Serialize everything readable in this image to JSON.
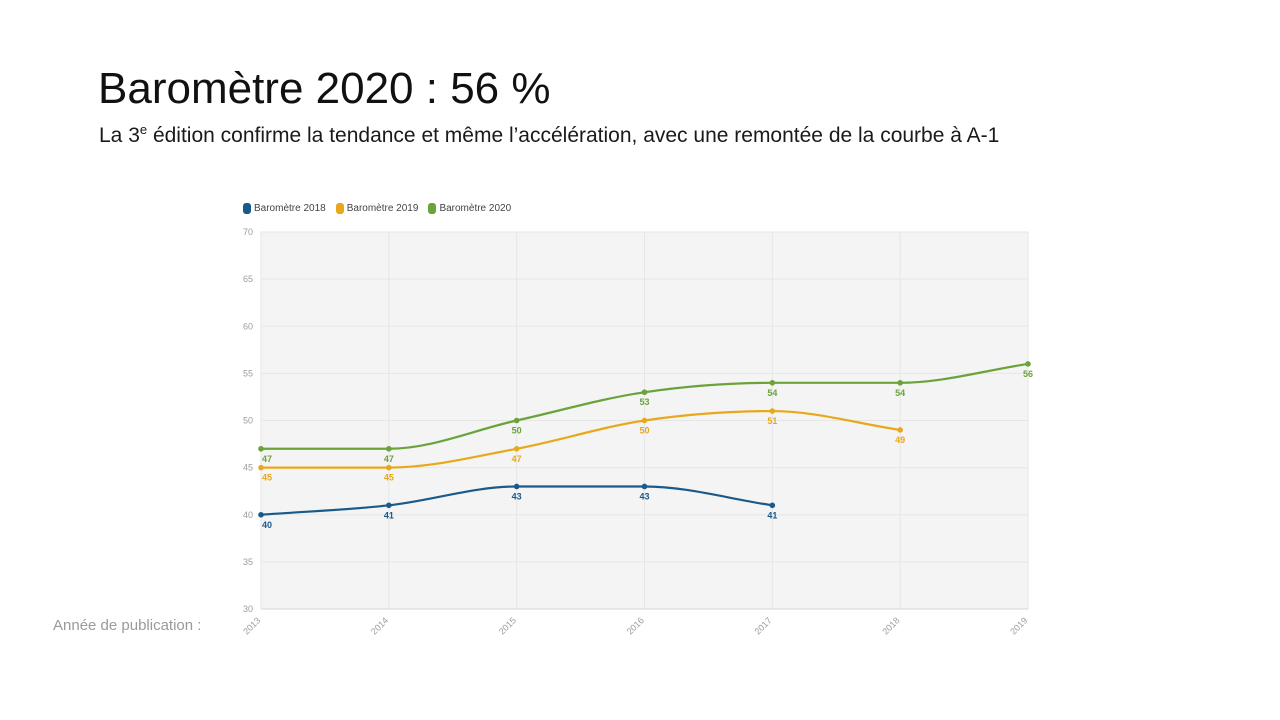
{
  "slide": {
    "title": "Baromètre 2020 : 56 %",
    "subtitle_before": "La 3",
    "subtitle_sup": "e",
    "subtitle_after": " édition confirme la tendance et même l’accélération, avec une remontée de la courbe à A-1",
    "x_label": "Année de publication :"
  },
  "chart_data": {
    "type": "line",
    "x": [
      "2013",
      "2014",
      "2015",
      "2016",
      "2017",
      "2018",
      "2019"
    ],
    "ylim": [
      30,
      70
    ],
    "yticks": [
      30,
      35,
      40,
      45,
      50,
      55,
      60,
      65,
      70
    ],
    "grid": true,
    "legend_position": "top-left",
    "series": [
      {
        "name": "Baromètre 2018",
        "color": "#1a5a8a",
        "values": [
          40,
          41,
          43,
          43,
          41,
          null,
          null
        ]
      },
      {
        "name": "Baromètre 2019",
        "color": "#e8a81c",
        "values": [
          45,
          45,
          47,
          50,
          51,
          49,
          null
        ]
      },
      {
        "name": "Baromètre 2020",
        "color": "#6aa33a",
        "values": [
          47,
          47,
          50,
          53,
          54,
          54,
          56
        ]
      }
    ]
  }
}
